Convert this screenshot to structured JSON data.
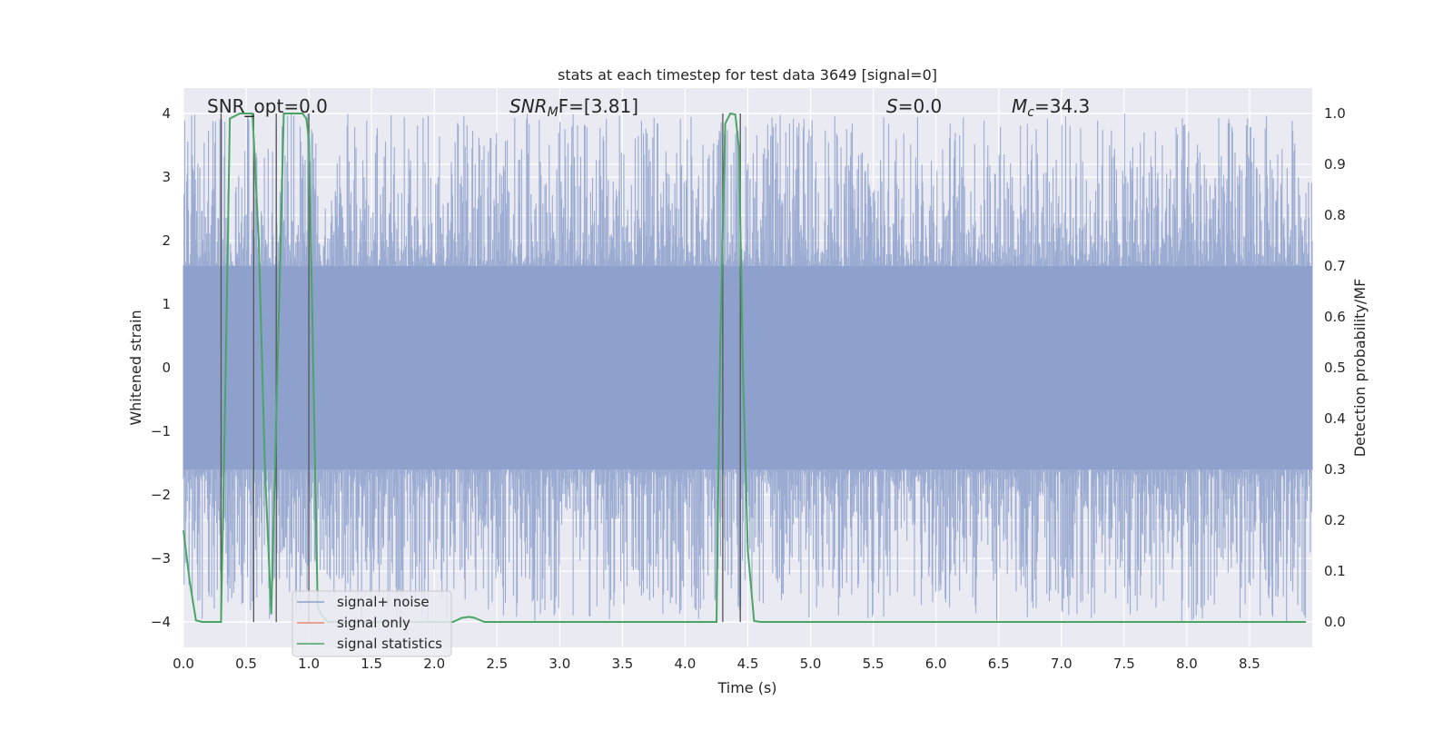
{
  "chart_data": {
    "type": "line",
    "title": "stats at each timestep for test data 3649 [signal=0]",
    "xlabel": "Time (s)",
    "ylabel_left": "Whitened strain",
    "ylabel_right": "Detection probability/MF",
    "xlim": [
      0,
      9.0
    ],
    "ylim_left": [
      -4.4,
      4.4
    ],
    "ylim_right": [
      -0.05,
      1.05
    ],
    "xticks": [
      "0.0",
      "0.5",
      "1.0",
      "1.5",
      "2.0",
      "2.5",
      "3.0",
      "3.5",
      "4.0",
      "4.5",
      "5.0",
      "5.5",
      "6.0",
      "6.5",
      "7.0",
      "7.5",
      "8.0",
      "8.5"
    ],
    "yticks_left": [
      "−4",
      "−3",
      "−2",
      "−1",
      "0",
      "1",
      "2",
      "3",
      "4"
    ],
    "yticks_right": [
      "0.0",
      "0.1",
      "0.2",
      "0.3",
      "0.4",
      "0.5",
      "0.6",
      "0.7",
      "0.8",
      "0.9",
      "1.0"
    ],
    "grid": true,
    "legend_position": "lower-left",
    "annotations": {
      "snr_opt": "SNR_opt=0.0",
      "snr_mf_prefix": "SNR",
      "snr_mf_sub": "M",
      "snr_mf_suffix": "F=[3.81]",
      "s_prefix": "S",
      "s_suffix": "=0.0",
      "mc_prefix": "M",
      "mc_sub": "c",
      "mc_suffix": "=34.3"
    },
    "series": [
      {
        "name": "signal+ noise",
        "color": "#8da0cb",
        "description": "dense whitened strain noise, roughly symmetric between about −4 and +4",
        "envelope": {
          "core": 1.6,
          "max_abs": 4.0
        }
      },
      {
        "name": "signal only",
        "color": "#e78a6e",
        "values": []
      },
      {
        "name": "signal statistics",
        "color": "#4aa564",
        "axis": "right",
        "x": [
          0.0,
          0.05,
          0.1,
          0.15,
          0.3,
          0.33,
          0.37,
          0.45,
          0.55,
          0.6,
          0.65,
          0.7,
          0.75,
          0.8,
          0.82,
          0.95,
          0.98,
          1.0,
          1.02,
          1.05,
          1.07,
          1.1,
          1.15,
          1.2,
          1.3,
          1.6,
          2.0,
          2.15,
          2.22,
          2.28,
          2.32,
          2.4,
          3.0,
          4.0,
          4.25,
          4.28,
          4.32,
          4.36,
          4.4,
          4.43,
          4.46,
          4.5,
          4.55,
          4.6,
          5.0,
          6.0,
          7.0,
          8.0,
          8.95
        ],
        "y": [
          0.18,
          0.08,
          0.003,
          0.0,
          0.0,
          0.4,
          0.99,
          1.0,
          1.0,
          0.75,
          0.3,
          0.015,
          0.5,
          1.0,
          1.0,
          1.0,
          0.99,
          0.95,
          0.7,
          0.3,
          0.03,
          0.015,
          0.0,
          0.0,
          0.0,
          0.0,
          0.0,
          0.0,
          0.008,
          0.01,
          0.008,
          0.0,
          0.0,
          0.0,
          0.0,
          0.55,
          0.98,
          1.0,
          0.998,
          0.93,
          0.5,
          0.14,
          0.002,
          0.0,
          0.0,
          0.0,
          0.0,
          0.0,
          0.0
        ]
      }
    ],
    "vertical_markers": {
      "color": "#555555",
      "x": [
        0.3,
        0.56,
        0.74,
        1.0,
        4.3,
        4.44
      ]
    },
    "legend": [
      {
        "label": "signal+ noise",
        "color": "#8da0cb"
      },
      {
        "label": "signal only",
        "color": "#e78a6e"
      },
      {
        "label": "signal statistics",
        "color": "#4aa564"
      }
    ]
  }
}
